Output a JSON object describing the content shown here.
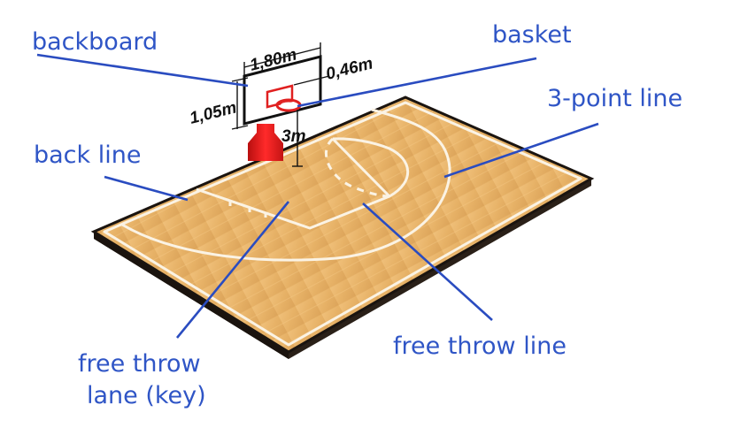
{
  "labels": {
    "backboard": "backboard",
    "basket": "basket",
    "three_point_line": "3-point line",
    "back_line": "back line",
    "free_throw_line": "free throw line",
    "free_throw_lane_1": "free throw",
    "free_throw_lane_2": "lane (key)"
  },
  "dimensions": {
    "board_width": "1,80m",
    "board_height": "1,05m",
    "square_width": "0,46m",
    "rim_height": "3m"
  },
  "colors": {
    "label": "#2f55c6",
    "leader": "#2a4cc0",
    "court_wood": "#e7b166",
    "court_edge": "#111111",
    "hoop_red": "#e02020"
  }
}
